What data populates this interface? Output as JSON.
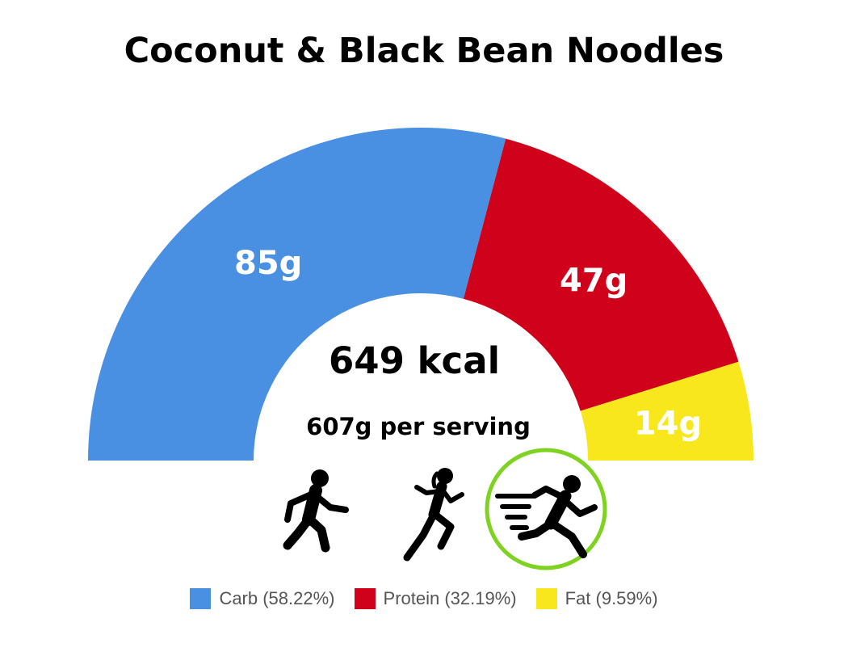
{
  "chart_data": {
    "type": "pie",
    "title": "Coconut & Black Bean Noodles",
    "center_label": "649 kcal",
    "center_sublabel": "607g per serving",
    "series": [
      {
        "name": "Carb",
        "value": 85,
        "value_label": "85g",
        "percent": 58.22,
        "legend_label": "Carb (58.22%)",
        "color": "#4A90E2"
      },
      {
        "name": "Protein",
        "value": 47,
        "value_label": "47g",
        "percent": 32.19,
        "legend_label": "Protein (32.19%)",
        "color": "#D0021B"
      },
      {
        "name": "Fat",
        "value": 14,
        "value_label": "14g",
        "percent": 9.59,
        "legend_label": "Fat (9.59%)",
        "color": "#F8E71C"
      }
    ],
    "legend_position": "bottom"
  },
  "activities": [
    {
      "icon": "walking-person-icon",
      "selected": false
    },
    {
      "icon": "running-woman-icon",
      "selected": false
    },
    {
      "icon": "sprinting-person-icon",
      "selected": true
    }
  ],
  "colors": {
    "highlight_ring": "#7ED321",
    "icon": "#000000"
  }
}
